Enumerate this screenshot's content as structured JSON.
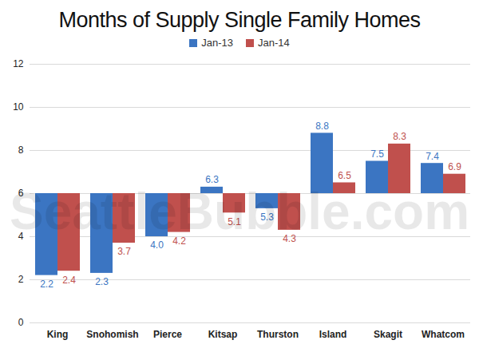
{
  "chart_data": {
    "type": "bar",
    "title": "Months of Supply Single Family Homes",
    "categories": [
      "King",
      "Snohomish",
      "Pierce",
      "Kitsap",
      "Thurston",
      "Island",
      "Skagit",
      "Whatcom"
    ],
    "series": [
      {
        "name": "Jan-13",
        "color": "#3b75c2",
        "values": [
          2.2,
          2.3,
          4.0,
          6.3,
          5.3,
          8.8,
          7.5,
          7.4
        ],
        "value_labels": [
          "2.2",
          "2.3",
          "4.0",
          "6.3",
          "5.3",
          "8.8",
          "7.5",
          "7.4"
        ]
      },
      {
        "name": "Jan-14",
        "color": "#c0504d",
        "values": [
          2.4,
          3.7,
          4.2,
          5.1,
          4.3,
          6.5,
          8.3,
          6.9
        ],
        "value_labels": [
          "2.4",
          "3.7",
          "4.2",
          "5.1",
          "4.3",
          "6.5",
          "8.3",
          "6.9"
        ]
      }
    ],
    "baseline": 6,
    "ylim": [
      0,
      12
    ],
    "yticks": [
      0,
      2,
      4,
      6,
      8,
      10,
      12
    ],
    "grid": true,
    "legend": "top",
    "data_labels": true,
    "annotations": [
      "SeattleBubble.com"
    ]
  }
}
